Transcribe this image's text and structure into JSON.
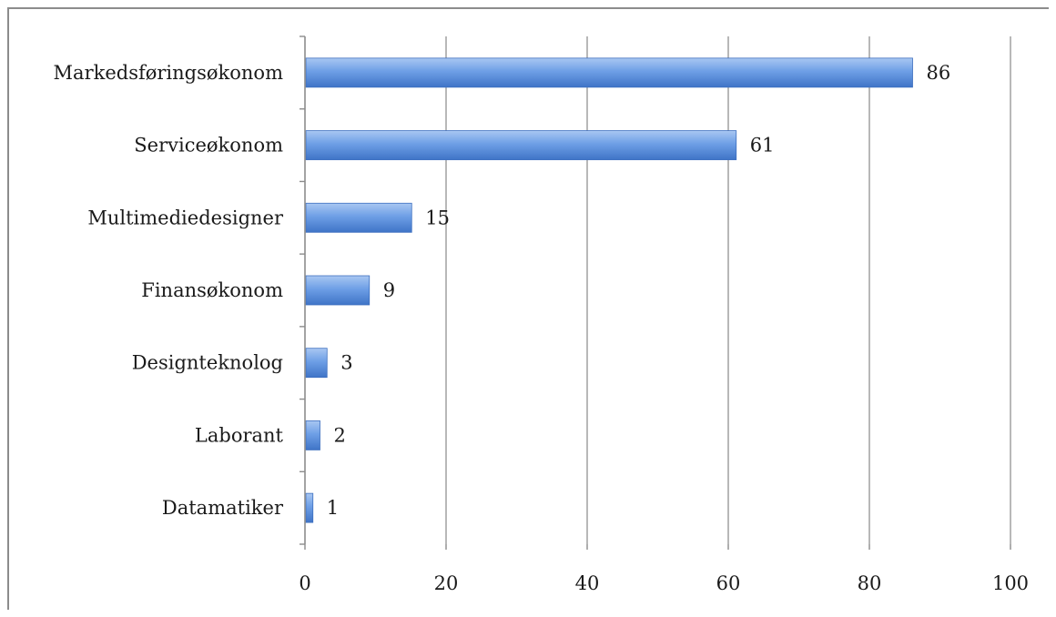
{
  "chart_data": {
    "type": "bar",
    "orientation": "horizontal",
    "categories": [
      "Markedsføringsøkonom",
      "Serviceøkonom",
      "Multimediedesigner",
      "Finansøkonom",
      "Designteknolog",
      "Laborant",
      "Datamatiker"
    ],
    "values": [
      86,
      61,
      15,
      9,
      3,
      2,
      1
    ],
    "data_labels": [
      "86",
      "61",
      "15",
      "9",
      "3",
      "2",
      "1"
    ],
    "xlim": [
      0,
      100
    ],
    "x_ticks": [
      0,
      20,
      40,
      60,
      80,
      100
    ],
    "x_tick_labels": [
      "0",
      "20",
      "40",
      "60",
      "80",
      "100"
    ],
    "title": "",
    "xlabel": "",
    "ylabel": "",
    "grid": "vertical",
    "legend": "none",
    "colors": {
      "bar_light": "#a9c7f2",
      "bar_main": "#5b8fdd",
      "bar_dark": "#3f74c7",
      "gridline": "#9a9a9a",
      "axis": "#8c8c8c",
      "text": "#1a1a1a"
    }
  }
}
